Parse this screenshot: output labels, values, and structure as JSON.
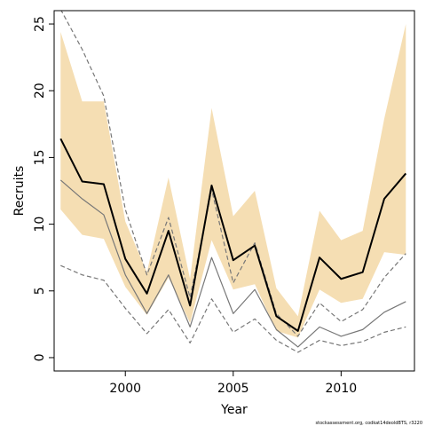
{
  "chart_data": {
    "type": "line",
    "xlabel": "Year",
    "ylabel": "Recruits",
    "xlim": [
      1996.7,
      2013.4
    ],
    "ylim": [
      -1.0,
      26.0
    ],
    "x_ticks": [
      2000,
      2005,
      2010
    ],
    "y_ticks": [
      0,
      5,
      10,
      15,
      20,
      25
    ],
    "grid": false,
    "footnote": "stockassessment.org, codkat14deoldBTS, r3220",
    "x": [
      1997,
      1998,
      1999,
      2000,
      2001,
      2002,
      2003,
      2004,
      2005,
      2006,
      2007,
      2008,
      2009,
      2010,
      2011,
      2012,
      2013
    ],
    "colors": {
      "band": "#f5deb3",
      "main": "#000000",
      "grey_solid": "#777777",
      "grey_dashed": "#777777"
    },
    "series": [
      {
        "kind": "band",
        "lower": [
          11.1,
          9.2,
          8.9,
          5.3,
          3.2,
          6.0,
          2.6,
          8.8,
          5.1,
          5.5,
          2.0,
          1.5,
          5.1,
          4.1,
          4.4,
          7.9,
          7.7
        ],
        "upper": [
          24.4,
          19.2,
          19.2,
          10.2,
          6.4,
          13.5,
          5.9,
          18.7,
          10.6,
          12.5,
          5.2,
          3.1,
          11.0,
          8.8,
          9.5,
          17.9,
          25.0
        ]
      },
      {
        "kind": "solid",
        "color": "main",
        "values": [
          16.4,
          13.2,
          13.0,
          7.4,
          4.8,
          9.5,
          3.9,
          12.9,
          7.3,
          8.4,
          3.1,
          2.0,
          7.5,
          5.9,
          6.4,
          11.9,
          13.8
        ]
      },
      {
        "kind": "solid",
        "color": "grey_solid",
        "values": [
          13.3,
          11.9,
          10.7,
          6.2,
          3.3,
          6.2,
          2.3,
          7.5,
          3.3,
          5.1,
          2.1,
          0.8,
          2.3,
          1.6,
          2.1,
          3.4,
          4.2
        ]
      },
      {
        "kind": "dashed",
        "color": "grey_dashed",
        "values": [
          6.9,
          6.2,
          5.8,
          3.7,
          1.8,
          3.6,
          1.1,
          4.4,
          1.9,
          2.9,
          1.3,
          0.4,
          1.3,
          0.9,
          1.2,
          1.9,
          2.3
        ]
      },
      {
        "kind": "dashed",
        "color": "grey_dashed",
        "values": [
          26.1,
          23.1,
          19.6,
          11.1,
          6.2,
          10.5,
          4.5,
          12.6,
          5.6,
          8.6,
          3.3,
          1.6,
          4.1,
          2.7,
          3.6,
          6.0,
          7.8
        ]
      }
    ]
  }
}
